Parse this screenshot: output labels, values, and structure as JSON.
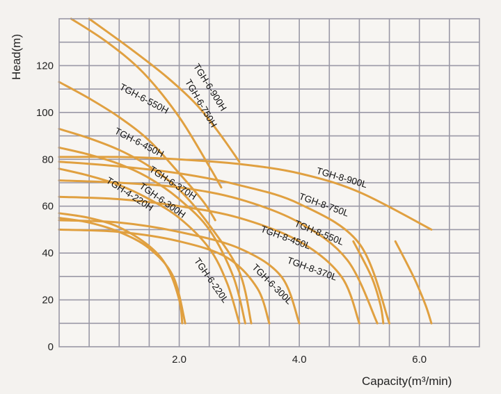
{
  "chart_data": {
    "type": "line",
    "title": "",
    "xlabel": "Capacity(m³/min)",
    "ylabel": "Head(m)",
    "xlim": [
      0,
      7
    ],
    "ylim": [
      0,
      140
    ],
    "x_ticks": [
      "2.0",
      "4.0",
      "6.0"
    ],
    "y_ticks": [
      "0",
      "20",
      "40",
      "60",
      "80",
      "100",
      "120"
    ],
    "grid": true,
    "line_color": "#e0a040",
    "series": [
      {
        "name": "TGH-6-900H",
        "x": [
          0.5,
          1.2,
          1.8,
          2.3,
          2.7,
          3.0
        ],
        "y": [
          140,
          127,
          115,
          103,
          90,
          79
        ]
      },
      {
        "name": "TGH-6-750H",
        "x": [
          0.2,
          0.8,
          1.4,
          2.0,
          2.5,
          2.7
        ],
        "y": [
          140,
          130,
          117,
          98,
          77,
          68
        ]
      },
      {
        "name": "TGH-6-550H",
        "x": [
          0.0,
          0.5,
          1.0,
          1.5,
          2.0,
          2.4,
          2.6
        ],
        "y": [
          113,
          106,
          98,
          88,
          74,
          62,
          54
        ]
      },
      {
        "name": "TGH-6-450H",
        "x": [
          0.0,
          0.5,
          1.0,
          1.5,
          2.0,
          2.5,
          3.0,
          3.2
        ],
        "y": [
          93,
          89,
          84,
          77,
          67,
          52,
          32,
          10
        ]
      },
      {
        "name": "TGH-6-370H",
        "x": [
          0.0,
          0.5,
          1.0,
          1.5,
          2.0,
          2.5,
          2.9,
          3.1
        ],
        "y": [
          85,
          82,
          78,
          72,
          63,
          50,
          30,
          10
        ]
      },
      {
        "name": "TGH-6-300H",
        "x": [
          0.0,
          0.5,
          1.0,
          1.5,
          2.0,
          2.5,
          2.8,
          3.0
        ],
        "y": [
          76,
          73,
          69,
          63,
          55,
          42,
          27,
          10
        ]
      },
      {
        "name": "TGH-4-220H",
        "x": [
          0.0,
          0.5,
          1.0,
          1.5,
          1.8,
          2.0,
          2.05
        ],
        "y": [
          57,
          55,
          51,
          43,
          34,
          20,
          10
        ]
      },
      {
        "name": "TGH-6-220L",
        "x": [
          0.0,
          0.5,
          1.0,
          1.5,
          1.9,
          2.1
        ],
        "y": [
          55,
          53,
          49,
          42,
          30,
          10
        ]
      },
      {
        "name": "TGH-6-300L",
        "x": [
          0.0,
          1.0,
          2.0,
          2.8,
          3.3,
          3.5
        ],
        "y": [
          50,
          49,
          45,
          38,
          25,
          10
        ]
      },
      {
        "name": "TGH-8-370L",
        "x": [
          0.0,
          1.0,
          2.0,
          3.0,
          3.7,
          4.0
        ],
        "y": [
          54,
          53,
          49,
          42,
          30,
          10
        ]
      },
      {
        "name": "TGH-8-450L",
        "x": [
          0.0,
          1.0,
          2.0,
          3.0,
          4.0,
          4.7,
          5.0
        ],
        "y": [
          64,
          63,
          60,
          55,
          45,
          30,
          10
        ]
      },
      {
        "name": "TGH-8-550L",
        "x": [
          0.0,
          1.0,
          2.0,
          3.0,
          4.0,
          4.8,
          5.3
        ],
        "y": [
          71,
          70,
          68,
          63,
          53,
          37,
          10
        ]
      },
      {
        "name": "TGH-8-750L",
        "x": [
          0.0,
          1.0,
          2.0,
          3.0,
          4.0,
          5.0,
          5.5
        ],
        "y": [
          79,
          77,
          74,
          69,
          61,
          44,
          10
        ]
      },
      {
        "name": "TGH-8-900L",
        "x": [
          0.0,
          1.0,
          2.0,
          3.0,
          4.0,
          5.0,
          6.2
        ],
        "y": [
          81,
          81,
          80,
          78,
          74,
          66,
          50
        ]
      },
      {
        "name": "",
        "x": [
          4.9,
          5.2,
          5.35,
          5.4
        ],
        "y": [
          45,
          30,
          18,
          10
        ]
      },
      {
        "name": "",
        "x": [
          5.6,
          5.9,
          6.1,
          6.2
        ],
        "y": [
          45,
          30,
          18,
          10
        ]
      }
    ]
  }
}
